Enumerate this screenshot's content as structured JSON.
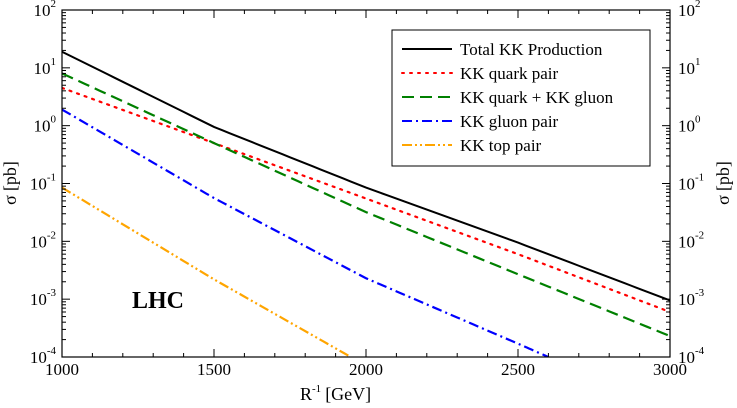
{
  "chart_data": {
    "type": "line",
    "title": "",
    "xlabel": {
      "base": "R",
      "superscript": "-1",
      "unit": "[GeV]"
    },
    "ylabel": {
      "symbol": "σ",
      "unit": "[pb]"
    },
    "xlim": [
      1000,
      3000
    ],
    "ylim": [
      0.0001,
      100
    ],
    "yscale": "log",
    "grid": false,
    "x_ticks": [
      "1000",
      "1500",
      "2000",
      "2500",
      "3000"
    ],
    "y_ticks": [
      {
        "base": "10",
        "exp": "-4"
      },
      {
        "base": "10",
        "exp": "-3"
      },
      {
        "base": "10",
        "exp": "-2"
      },
      {
        "base": "10",
        "exp": "-1"
      },
      {
        "base": "10",
        "exp": "0"
      },
      {
        "base": "10",
        "exp": "1"
      },
      {
        "base": "10",
        "exp": "2"
      }
    ],
    "legend_position": "top-right",
    "annotation": "LHC",
    "series": [
      {
        "name": "Total KK Production",
        "color": "#000000",
        "dash": "solid",
        "x": [
          1000,
          1500,
          2000,
          2500,
          3000
        ],
        "y": [
          19,
          0.95,
          0.085,
          0.0095,
          0.00095
        ]
      },
      {
        "name": "KK quark pair",
        "color": "#ff0000",
        "dash": "dotted",
        "x": [
          1000,
          1500,
          2000,
          2500,
          3000
        ],
        "y": [
          4.5,
          0.5,
          0.055,
          0.006,
          0.0006
        ]
      },
      {
        "name": "KK quark + KK gluon",
        "color": "#008000",
        "dash": "dashed",
        "x": [
          1000,
          1500,
          2000,
          2500,
          3000
        ],
        "y": [
          8,
          0.5,
          0.032,
          0.0027,
          0.00023
        ]
      },
      {
        "name": "KK gluon pair",
        "color": "#0000ff",
        "dash": "dashdot",
        "x": [
          1000,
          1500,
          2000,
          2500,
          2600
        ],
        "y": [
          1.9,
          0.056,
          0.0023,
          0.00017,
          0.0001
        ]
      },
      {
        "name": "KK top pair",
        "color": "#ffa500",
        "dash": "dashdotdot",
        "x": [
          1000,
          1500,
          1950
        ],
        "y": [
          0.085,
          0.0022,
          0.0001
        ]
      }
    ]
  }
}
